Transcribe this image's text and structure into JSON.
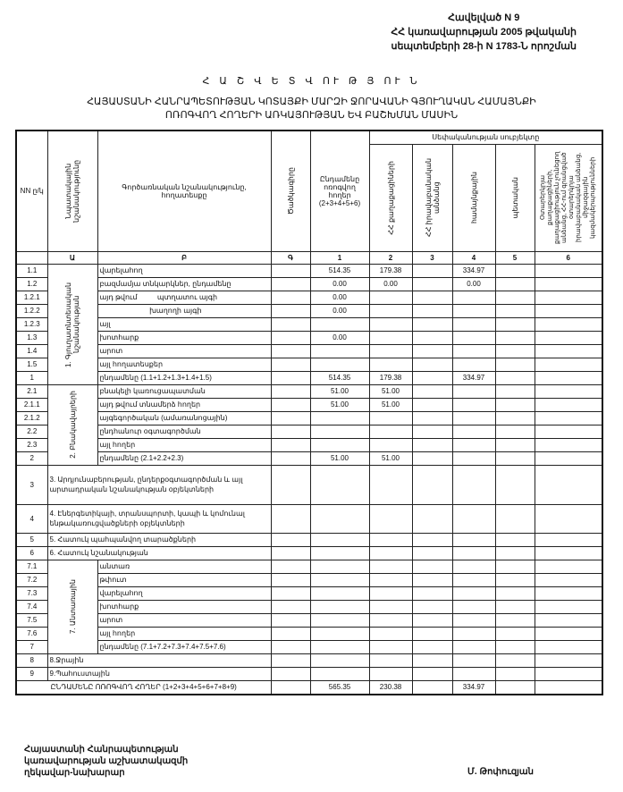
{
  "annex": {
    "line1": "Հավելված N 9",
    "line2": "ՀՀ կառավարության 2005 թվականի",
    "line3": "սեպտեմբերի 28-ի N 1783-Ն որոշման"
  },
  "title": "Հ Ա Շ Վ Ե Տ Վ ՈՒ Թ Յ ՈՒ Ն",
  "subtitle": {
    "line1": "ՀԱՅԱՍՏԱՆԻ ՀԱՆՐԱՊԵՏՈՒԹՅԱՆ ԿՈՏԱՅՔԻ ՄԱՐԶԻ ՋՈՐԱՎԱՆԻ ԳՅՈՒՂԱԿԱՆ ՀԱՄԱՅՆՔԻ",
    "line2": "ՈՌՈԳՎՈՂ ՀՈՂԵՐԻ ԱՌԿԱՅՈՒԹՅԱՆ ԵՎ ԲԱՇԽՄԱՆ ՄԱՍԻՆ"
  },
  "headers": {
    "nn": "NN ը/կ",
    "purpose": "Նպատակային նշանակությունը",
    "function": "Գործառնական նշանակությունը, հողատեսքը",
    "code": "Ծածկագիրը",
    "total": "Ընդամենը ոռոգվող հողեր (2+3+4+5+6)",
    "ownership": "Սեփականության սուբյեկտը",
    "c2": "ՀՀ քաղաքացիների",
    "c3": "ՀՀ իրավաբանական անձանց",
    "c4": "համայնքային",
    "c5": "պետական",
    "c6": "Օտարերկրյա քաղաքացիների, քաղաքացիություն չունեցող անձանց, ՀՀ-ում գրանցված օտարերկրյա իրավաբանական անձանց, միջազգային կազմակերպությունների",
    "index": [
      "",
      "Ա",
      "Բ",
      "Գ",
      "1",
      "2",
      "3",
      "4",
      "5",
      "6"
    ]
  },
  "sections": [
    {
      "group": "1. Գյուղատնտեսական նշանակության",
      "rows": [
        {
          "no": "1.1",
          "name": "վարելահող",
          "vals": [
            "514.35",
            "179.38",
            "",
            "334.97",
            "",
            ""
          ]
        },
        {
          "no": "1.2",
          "name": "բազմամյա տնկարկներ, ընդամենը",
          "vals": [
            "0.00",
            "0.00",
            "",
            "0.00",
            "",
            ""
          ]
        },
        {
          "no": "1.2.1",
          "name": "այդ թվում          պտղատու այգի",
          "vals": [
            "0.00",
            "",
            "",
            "",
            "",
            ""
          ]
        },
        {
          "no": "1.2.2",
          "name": "                         խաղողի այգի",
          "vals": [
            "0.00",
            "",
            "",
            "",
            "",
            ""
          ]
        },
        {
          "no": "1.2.3",
          "name": "այլ",
          "vals": [
            "",
            "",
            "",
            "",
            "",
            ""
          ]
        },
        {
          "no": "1.3",
          "name": "խոտհարք",
          "vals": [
            "0.00",
            "",
            "",
            "",
            "",
            ""
          ]
        },
        {
          "no": "1.4",
          "name": "արոտ",
          "vals": [
            "",
            "",
            "",
            "",
            "",
            ""
          ]
        },
        {
          "no": "1.5",
          "name": "այլ հողատեսքեր",
          "vals": [
            "",
            "",
            "",
            "",
            "",
            ""
          ]
        },
        {
          "no": "1",
          "name": "ընդամենը (1.1+1.2+1.3+1.4+1.5)",
          "vals": [
            "514.35",
            "179.38",
            "",
            "334.97",
            "",
            ""
          ]
        }
      ]
    },
    {
      "group": "2. Բնակավայրերի",
      "rows": [
        {
          "no": "2.1",
          "name": "բնակելի կառուցապատման",
          "vals": [
            "51.00",
            "51.00",
            "",
            "",
            "",
            ""
          ]
        },
        {
          "no": "2.1.1",
          "name": "այդ թվում տնամերձ հողեր",
          "vals": [
            "51.00",
            "51.00",
            "",
            "",
            "",
            ""
          ]
        },
        {
          "no": "2.1.2",
          "name": "այգեգործական (ամառանոցային)",
          "vals": [
            "",
            "",
            "",
            "",
            "",
            ""
          ]
        },
        {
          "no": "2.2",
          "name": "ընդհանուր օգտագործման",
          "vals": [
            "",
            "",
            "",
            "",
            "",
            ""
          ]
        },
        {
          "no": "2.3",
          "name": "այլ հողեր",
          "vals": [
            "",
            "",
            "",
            "",
            "",
            ""
          ]
        },
        {
          "no": "2",
          "name": "ընդամենը (2.1+2.2+2.3)",
          "vals": [
            "51.00",
            "51.00",
            "",
            "",
            "",
            ""
          ]
        }
      ]
    },
    {
      "single": true,
      "no": "3",
      "name": "3. Արդյունաբերության, ընդերքօգտագործման և այլ արտադրական նշանակության օբյեկտների",
      "tall": true,
      "vals": [
        "",
        "",
        "",
        "",
        "",
        ""
      ]
    },
    {
      "single": true,
      "no": "4",
      "name": "4. Էներգետիկայի, տրանսպորտի, կապի և կոմունալ ենթակառուցվածքների օբյեկտների",
      "tall": true,
      "vals": [
        "",
        "",
        "",
        "",
        "",
        ""
      ]
    },
    {
      "single": true,
      "no": "5",
      "name": "5. Հատուկ պահպանվող տարածքների",
      "vals": [
        "",
        "",
        "",
        "",
        "",
        ""
      ]
    },
    {
      "single": true,
      "no": "6",
      "name": "6. Հատուկ նշանակության",
      "vals": [
        "",
        "",
        "",
        "",
        "",
        ""
      ]
    },
    {
      "group": "7. Անտառային",
      "rows": [
        {
          "no": "7.1",
          "name": "անտառ",
          "vals": [
            "",
            "",
            "",
            "",
            "",
            ""
          ]
        },
        {
          "no": "7.2",
          "name": "թփուտ",
          "vals": [
            "",
            "",
            "",
            "",
            "",
            ""
          ]
        },
        {
          "no": "7.3",
          "name": "վարելահող",
          "vals": [
            "",
            "",
            "",
            "",
            "",
            ""
          ]
        },
        {
          "no": "7.4",
          "name": "խոտհարք",
          "vals": [
            "",
            "",
            "",
            "",
            "",
            ""
          ]
        },
        {
          "no": "7.5",
          "name": "արոտ",
          "vals": [
            "",
            "",
            "",
            "",
            "",
            ""
          ]
        },
        {
          "no": "7.6",
          "name": "այլ հողեր",
          "vals": [
            "",
            "",
            "",
            "",
            "",
            ""
          ]
        },
        {
          "no": "7",
          "name": "ընդամենը (7.1+7.2+7.3+7.4+7.5+7.6)",
          "vals": [
            "",
            "",
            "",
            "",
            "",
            ""
          ]
        }
      ]
    },
    {
      "single": true,
      "no": "8",
      "name": "8.Ջրային",
      "vals": [
        "",
        "",
        "",
        "",
        "",
        ""
      ]
    },
    {
      "single": true,
      "no": "9",
      "name": "9.Պահուստային",
      "vals": [
        "",
        "",
        "",
        "",
        "",
        ""
      ]
    }
  ],
  "grand_total": {
    "name": "ԸՆԴԱՄԵՆԸ ՈՌՈԳՎՈՂ ՀՈՂԵՐ (1+2+3+4+5+6+7+8+9)",
    "vals": [
      "565.35",
      "230.38",
      "",
      "334.97",
      "",
      ""
    ]
  },
  "footer": {
    "line1": "Հայաստանի Հանրապետության",
    "line2": "կառավարության աշխատակազմի",
    "line3": "ղեկավար-նախարար",
    "signatory": "Մ. Թոփուզյան"
  }
}
